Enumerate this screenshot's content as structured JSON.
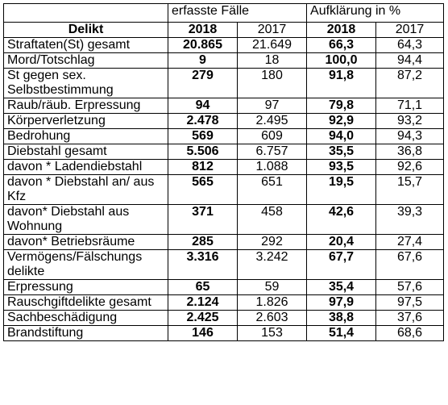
{
  "header": {
    "group1": "erfasste Fälle",
    "group2": "Aufklärung in %",
    "delikt": "Delikt",
    "y2018a": "2018",
    "y2017a": "2017",
    "y2018b": "2018",
    "y2017b": "2017"
  },
  "rows": [
    {
      "name": "Straftaten(St) gesamt",
      "f2018": "20.865",
      "f2017": "21.649",
      "a2018": "66,3",
      "a2017": "64,3"
    },
    {
      "name": "Mord/Totschlag",
      "f2018": "9",
      "f2017": "18",
      "a2018": "100,0",
      "a2017": "94,4"
    },
    {
      "name": "St gegen sex. Selbstbestimmung",
      "f2018": "279",
      "f2017": "180",
      "a2018": "91,8",
      "a2017": "87,2"
    },
    {
      "name": "Raub/räub. Erpressung",
      "f2018": "94",
      "f2017": "97",
      "a2018": "79,8",
      "a2017": "71,1"
    },
    {
      "name": "Körperverletzung",
      "f2018": "2.478",
      "f2017": "2.495",
      "a2018": "92,9",
      "a2017": "93,2"
    },
    {
      "name": "Bedrohung",
      "f2018": "569",
      "f2017": "609",
      "a2018": "94,0",
      "a2017": "94,3"
    },
    {
      "name": "Diebstahl gesamt",
      "f2018": "5.506",
      "f2017": "6.757",
      "a2018": "35,5",
      "a2017": "36,8"
    },
    {
      "name": "davon * Ladendiebstahl",
      "f2018": "812",
      "f2017": "1.088",
      "a2018": "93,5",
      "a2017": "92,6"
    },
    {
      "name": "davon * Diebstahl an/ aus Kfz",
      "f2018": "565",
      "f2017": "651",
      "a2018": "19,5",
      "a2017": "15,7"
    },
    {
      "name": "davon* Diebstahl aus Wohnung",
      "f2018": "371",
      "f2017": "458",
      "a2018": "42,6",
      "a2017": "39,3"
    },
    {
      "name": "davon* Betriebsräume",
      "f2018": "285",
      "f2017": "292",
      "a2018": "20,4",
      "a2017": "27,4"
    },
    {
      "name": "Vermögens/Fälschungs delikte",
      "f2018": "3.316",
      "f2017": "3.242",
      "a2018": "67,7",
      "a2017": "67,6"
    },
    {
      "name": "Erpressung",
      "f2018": "65",
      "f2017": "59",
      "a2018": "35,4",
      "a2017": "57,6"
    },
    {
      "name": "Rauschgiftdelikte gesamt",
      "f2018": "2.124",
      "f2017": "1.826",
      "a2018": "97,9",
      "a2017": "97,5"
    },
    {
      "name": "Sachbeschädigung",
      "f2018": "2.425",
      "f2017": "2.603",
      "a2018": "38,8",
      "a2017": "37,6"
    },
    {
      "name": "Brandstiftung",
      "f2018": "146",
      "f2017": "153",
      "a2018": "51,4",
      "a2017": "68,6"
    }
  ]
}
